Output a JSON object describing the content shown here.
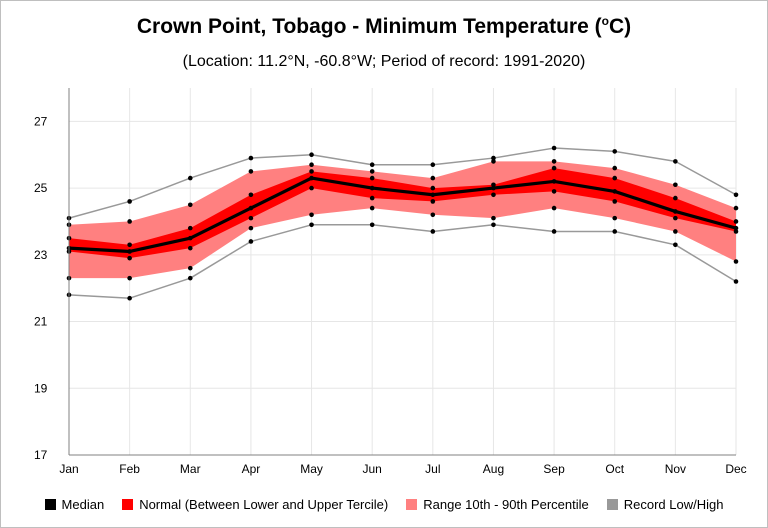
{
  "chart_data": {
    "type": "line",
    "title_prefix": "Crown Point, Tobago - Minimum Temperature (",
    "title_unit_sup": "o",
    "title_suffix": "C)",
    "subtitle": "(Location: 11.2°N, -60.8°W; Period of record: 1991-2020)",
    "categories": [
      "Jan",
      "Feb",
      "Mar",
      "Apr",
      "May",
      "Jun",
      "Jul",
      "Aug",
      "Sep",
      "Oct",
      "Nov",
      "Dec"
    ],
    "ylim": [
      17,
      28
    ],
    "yticks": [
      17,
      19,
      21,
      23,
      25,
      27
    ],
    "grid": true,
    "legend_position": "bottom",
    "series": [
      {
        "name": "Median",
        "values": [
          23.2,
          23.1,
          23.5,
          24.4,
          25.3,
          25.0,
          24.8,
          25.0,
          25.2,
          24.9,
          24.3,
          23.8
        ]
      },
      {
        "name": "Normal (Between Lower and Upper Tercile)",
        "lower": [
          23.1,
          22.9,
          23.2,
          24.1,
          25.0,
          24.7,
          24.6,
          24.8,
          24.9,
          24.6,
          24.1,
          23.7
        ],
        "upper": [
          23.5,
          23.3,
          23.8,
          24.8,
          25.5,
          25.3,
          25.0,
          25.1,
          25.6,
          25.3,
          24.7,
          24.0
        ]
      },
      {
        "name": "Range 10th - 90th Percentile",
        "lower": [
          22.3,
          22.3,
          22.6,
          23.8,
          24.2,
          24.4,
          24.2,
          24.1,
          24.4,
          24.1,
          23.7,
          22.8
        ],
        "upper": [
          23.9,
          24.0,
          24.5,
          25.5,
          25.7,
          25.5,
          25.3,
          25.8,
          25.8,
          25.6,
          25.1,
          24.4
        ]
      },
      {
        "name": "Record Low/High",
        "lower": [
          21.8,
          21.7,
          22.3,
          23.4,
          23.9,
          23.9,
          23.7,
          23.9,
          23.7,
          23.7,
          23.3,
          22.2
        ],
        "upper": [
          24.1,
          24.6,
          25.3,
          25.9,
          26.0,
          25.7,
          25.7,
          25.9,
          26.2,
          26.1,
          25.8,
          24.8
        ]
      }
    ],
    "colors": {
      "median": "#000000",
      "normal": "#ff0000",
      "percentile": "#ff8080",
      "record": "#999999",
      "grid": "#e6e6e6",
      "axis": "#808080"
    }
  }
}
